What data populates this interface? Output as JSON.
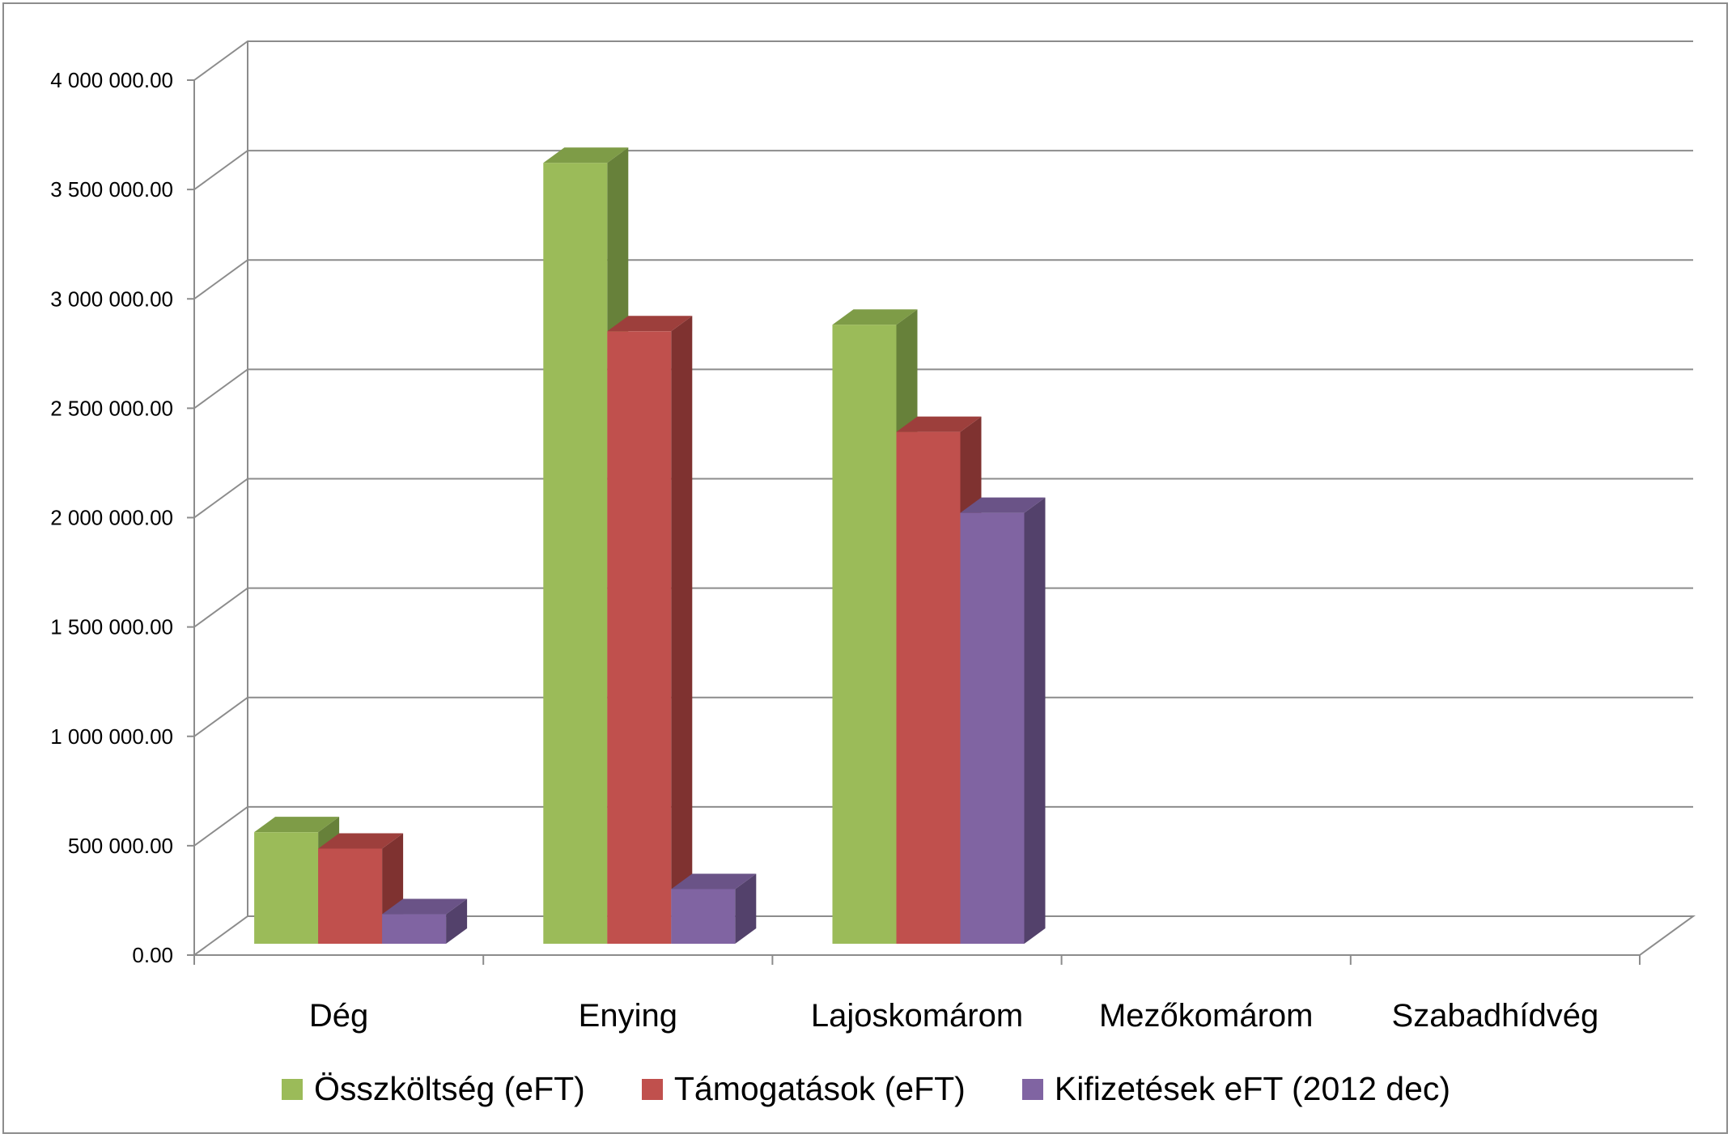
{
  "chart_data": {
    "type": "bar",
    "categories": [
      "Dég",
      "Enying",
      "Lajoskomárom",
      "Mezőkomárom",
      "Szabadhídvég"
    ],
    "series": [
      {
        "name": "Összköltség (eFT)",
        "values": [
          510000,
          3570000,
          2830000,
          0,
          0
        ],
        "color": "#9bbb59",
        "side_color": "#67813a",
        "top_color": "#7e9c47"
      },
      {
        "name": "Támogatások (eFT)",
        "values": [
          435000,
          2800000,
          2340000,
          0,
          0
        ],
        "color": "#c0504d",
        "side_color": "#7f3230",
        "top_color": "#9d3f3c"
      },
      {
        "name": "Kifizetések eFT (2012 dec)",
        "values": [
          135000,
          250000,
          1970000,
          0,
          0
        ],
        "color": "#8064a2",
        "side_color": "#53416b",
        "top_color": "#6a5387"
      }
    ],
    "yticks": [
      "0.00",
      "500 000.00",
      "1 000 000.00",
      "1 500 000.00",
      "2 000 000.00",
      "2 500 000.00",
      "3 000 000.00",
      "3 500 000.00",
      "4 000 000.00"
    ],
    "ylim": [
      0,
      4000000
    ],
    "grid": true,
    "legend": "bottom",
    "colors": {
      "grid": "#8c8c8c",
      "axis": "#8c8c8c"
    }
  }
}
